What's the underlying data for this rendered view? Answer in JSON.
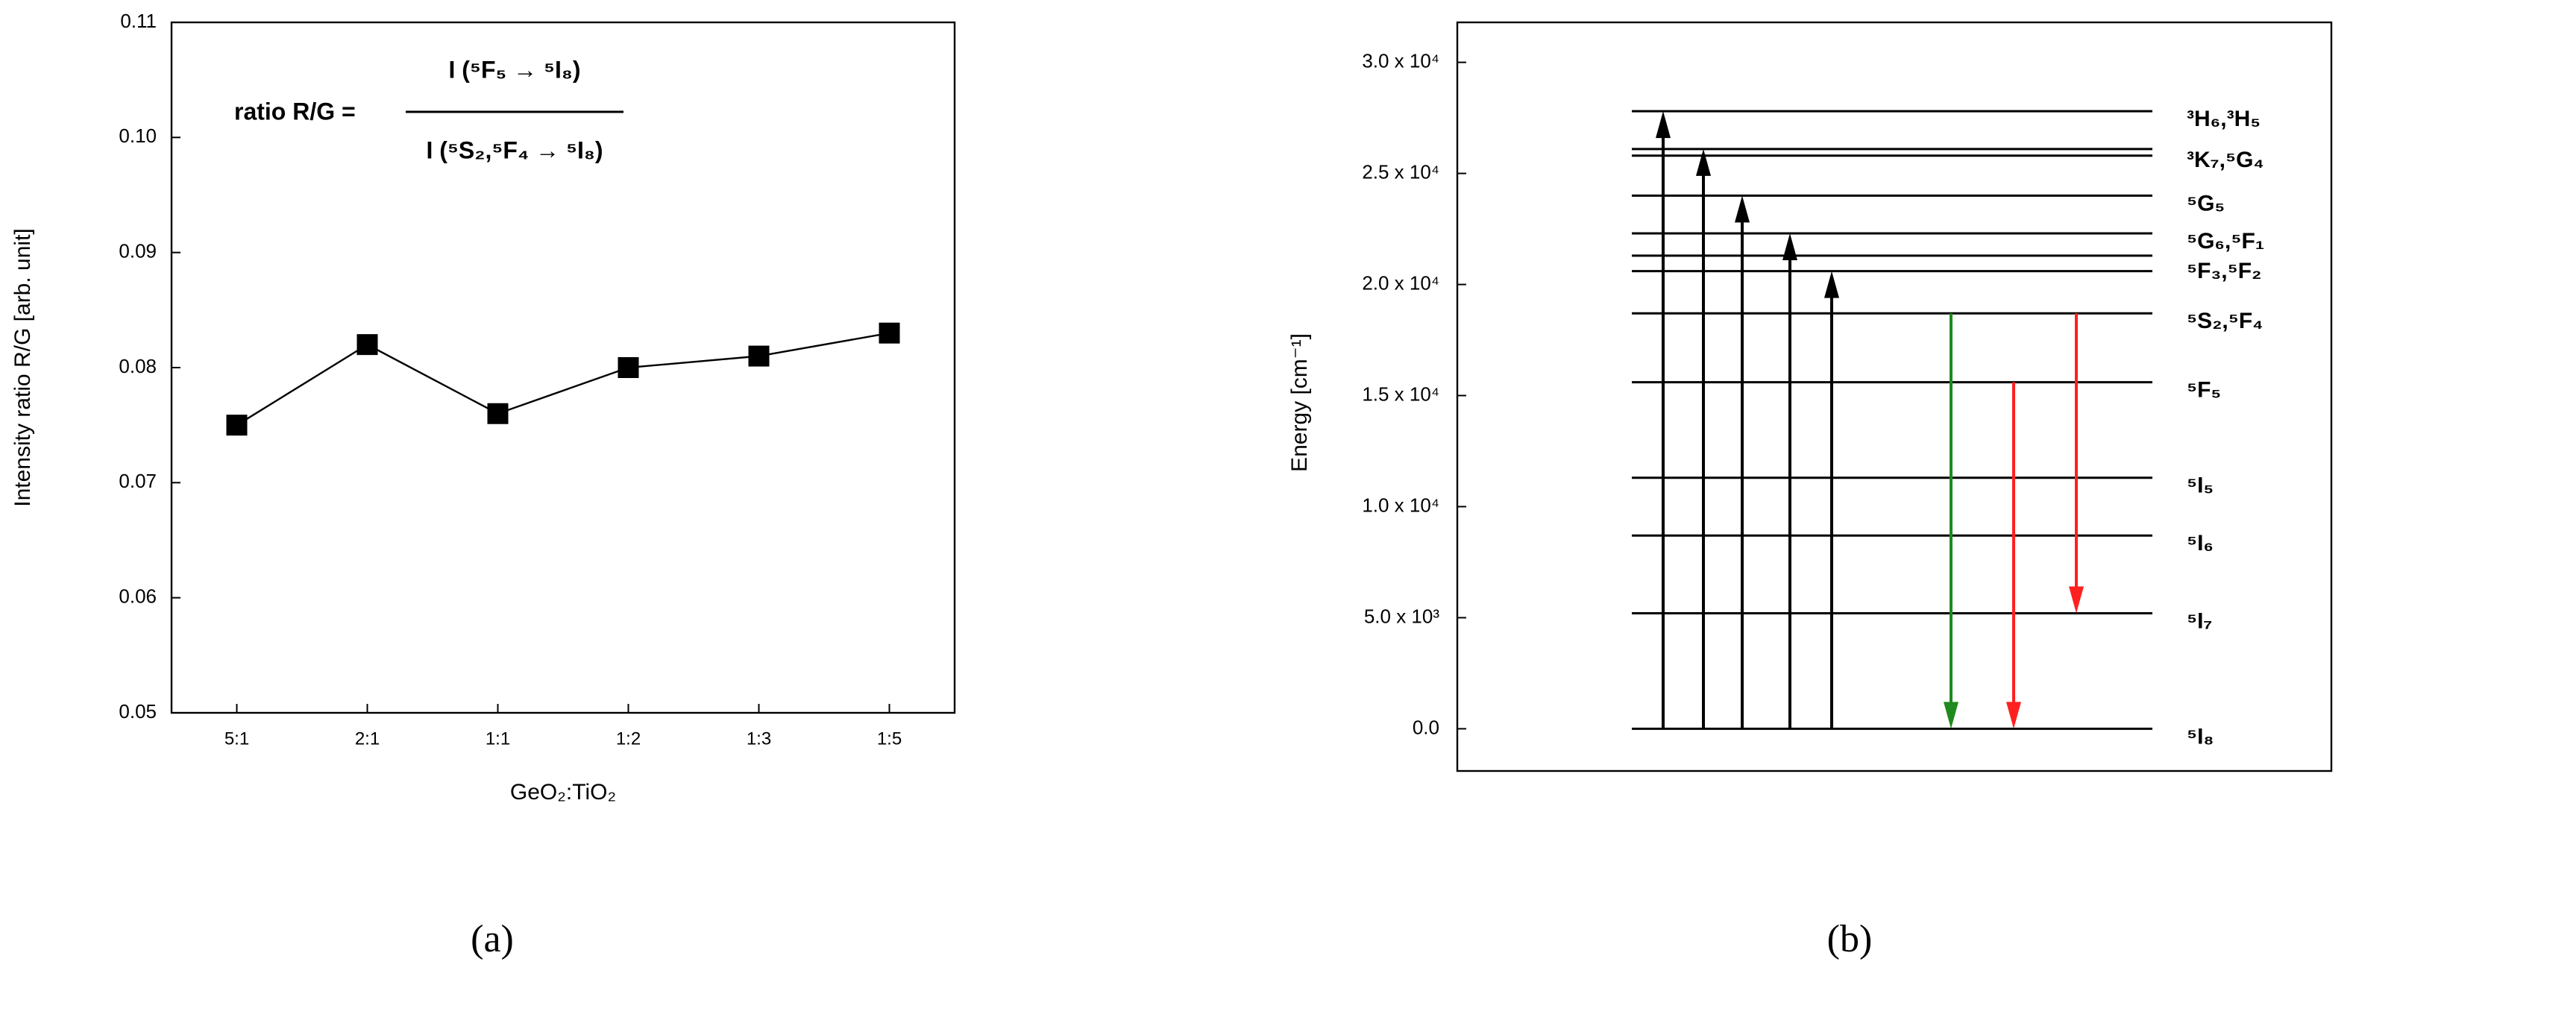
{
  "chart_data": [
    {
      "type": "line",
      "panel_label": "(a)",
      "formula_left": "ratio R/G =",
      "formula_numerator": "I (⁵F₅ → ⁵I₈)",
      "formula_denominator": "I (⁵S₂,⁵F₄ → ⁵I₈)",
      "x_label": "GeO₂:TiO₂",
      "y_label": "Intensity ratio R/G [arb. unit]",
      "categories": [
        "5:1",
        "2:1",
        "1:1",
        "1:2",
        "1:3",
        "1:5"
      ],
      "values": [
        0.075,
        0.082,
        0.076,
        0.08,
        0.081,
        0.083
      ],
      "color": "#000000",
      "ylim": [
        0.05,
        0.11
      ],
      "yticks": [
        0.05,
        0.06,
        0.07,
        0.08,
        0.09,
        {
          "value": 0.1,
          "label": "0.10"
        },
        0.11
      ]
    },
    {
      "type": "energy-level",
      "panel_label": "(b)",
      "y_label": "Energy [cm⁻¹]",
      "ylim": [
        -1900,
        31800
      ],
      "yticks": [
        {
          "value": 0,
          "label": "0.0"
        },
        {
          "value": 5000,
          "label": "5.0 x 10³"
        },
        {
          "value": 10000,
          "label": "1.0 x 10⁴"
        },
        {
          "value": 15000,
          "label": "1.5 x 10⁴"
        },
        {
          "value": 20000,
          "label": "2.0 x 10⁴"
        },
        {
          "value": 25000,
          "label": "2.5 x 10⁴"
        },
        {
          "value": 30000,
          "label": "3.0 x 10⁴"
        }
      ],
      "levels": [
        {
          "label": "³H₆,³H₅",
          "energies": [
            27800
          ]
        },
        {
          "label": "³K₇,⁵G₄",
          "energies": [
            26100,
            25800
          ]
        },
        {
          "label": "⁵G₅",
          "energies": [
            24000
          ]
        },
        {
          "label": "⁵G₆,⁵F₁",
          "energies": [
            22300
          ]
        },
        {
          "label": "⁵F₃,⁵F₂",
          "energies": [
            21300,
            20600
          ]
        },
        {
          "label": "⁵S₂,⁵F₄",
          "energies": [
            18700
          ]
        },
        {
          "label": "⁵F₅",
          "energies": [
            15600
          ]
        },
        {
          "label": "⁵I₅",
          "energies": [
            11300
          ]
        },
        {
          "label": "⁵I₆",
          "energies": [
            8700
          ]
        },
        {
          "label": "⁵I₇",
          "energies": [
            5200
          ]
        },
        {
          "label": "⁵I₈",
          "energies": [
            0
          ]
        }
      ],
      "transitions": [
        {
          "from": 0,
          "to": 27800,
          "color": "#000000"
        },
        {
          "from": 0,
          "to": 26100,
          "color": "#000000"
        },
        {
          "from": 0,
          "to": 24000,
          "color": "#000000"
        },
        {
          "from": 0,
          "to": 22300,
          "color": "#000000"
        },
        {
          "from": 0,
          "to": 20600,
          "color": "#000000"
        },
        {
          "from": 18700,
          "to": 0,
          "color": "#1f8a1f"
        },
        {
          "from": 15600,
          "to": 0,
          "color": "#ff2020"
        },
        {
          "from": 18700,
          "to": 5200,
          "color": "#ff2020"
        }
      ]
    }
  ]
}
